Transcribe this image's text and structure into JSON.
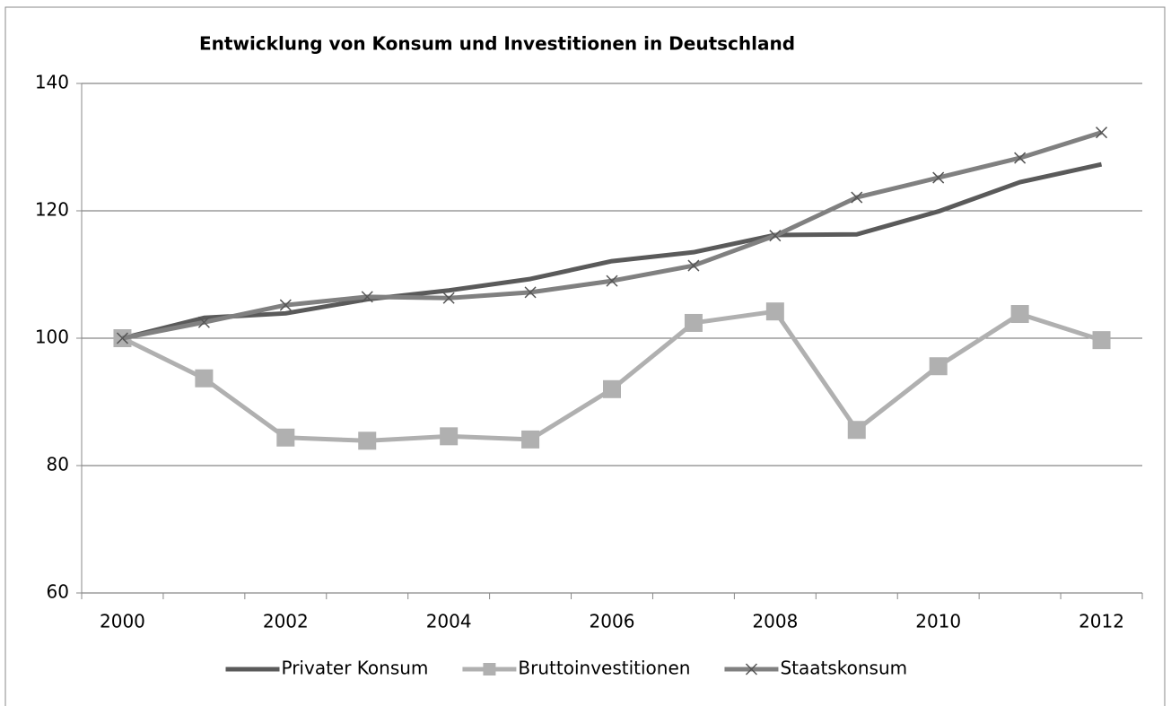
{
  "chart_data": {
    "type": "line",
    "title": "Entwicklung von Konsum und Investitionen in Deutschland",
    "categories": [
      "2000",
      null,
      "2002",
      null,
      "2004",
      null,
      "2006",
      null,
      "2008",
      null,
      "2010",
      null,
      "2012"
    ],
    "ylim": [
      60,
      140
    ],
    "yticks": [
      60,
      80,
      100,
      120,
      140
    ],
    "grid": true,
    "legend": "bottom",
    "series": [
      {
        "name": "Privater Konsum",
        "color": "#5a5a5a",
        "marker": "none",
        "values": [
          100,
          103.2,
          103.9,
          106.1,
          107.5,
          109.3,
          112.1,
          113.5,
          116.2,
          116.3,
          119.9,
          124.5,
          127.3
        ]
      },
      {
        "name": "Bruttoinvestitionen",
        "color": "#b0b0b0",
        "marker": "square",
        "values": [
          100,
          93.7,
          84.4,
          83.9,
          84.6,
          84.1,
          92.0,
          102.4,
          104.2,
          85.6,
          95.6,
          103.8,
          99.7
        ]
      },
      {
        "name": "Staatskonsum",
        "color": "#808080",
        "marker": "x",
        "values": [
          100,
          102.5,
          105.2,
          106.5,
          106.3,
          107.2,
          109.0,
          111.4,
          116.1,
          122.1,
          125.2,
          128.3,
          132.3
        ]
      }
    ]
  }
}
